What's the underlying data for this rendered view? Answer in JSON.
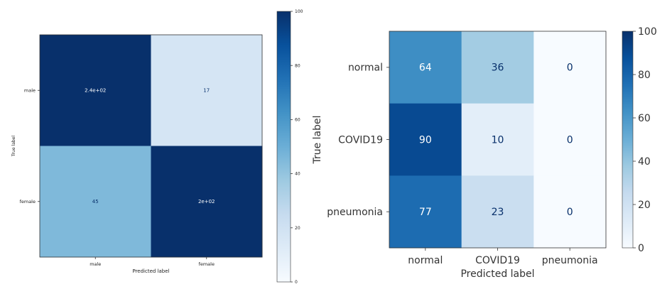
{
  "chart_data": [
    {
      "type": "heatmap",
      "title": "",
      "xlabel": "Predicted label",
      "ylabel": "True label",
      "row_labels": [
        "male",
        "female"
      ],
      "col_labels": [
        "male",
        "female"
      ],
      "values": [
        [
          240,
          17
        ],
        [
          45,
          200
        ]
      ],
      "value_labels": [
        [
          "2.4e+02",
          "17"
        ],
        [
          "45",
          "2e+02"
        ]
      ],
      "colorbar": {
        "range": [
          0,
          100
        ],
        "ticks": [
          "0",
          "20",
          "40",
          "60",
          "80",
          "100"
        ]
      },
      "colormap": "Blues",
      "grid": false
    },
    {
      "type": "heatmap",
      "title": "",
      "xlabel": "Predicted label",
      "ylabel": "True label",
      "row_labels": [
        "normal",
        "COVID19",
        "pneumonia"
      ],
      "col_labels": [
        "normal",
        "COVID19",
        "pneumonia"
      ],
      "values": [
        [
          64,
          36,
          0
        ],
        [
          90,
          10,
          0
        ],
        [
          77,
          23,
          0
        ]
      ],
      "value_labels": [
        [
          "64",
          "36",
          "0"
        ],
        [
          "90",
          "10",
          "0"
        ],
        [
          "77",
          "23",
          "0"
        ]
      ],
      "colorbar": {
        "range": [
          0,
          100
        ],
        "ticks": [
          "0",
          "20",
          "40",
          "60",
          "80",
          "100"
        ]
      },
      "colormap": "Blues",
      "grid": false
    }
  ]
}
